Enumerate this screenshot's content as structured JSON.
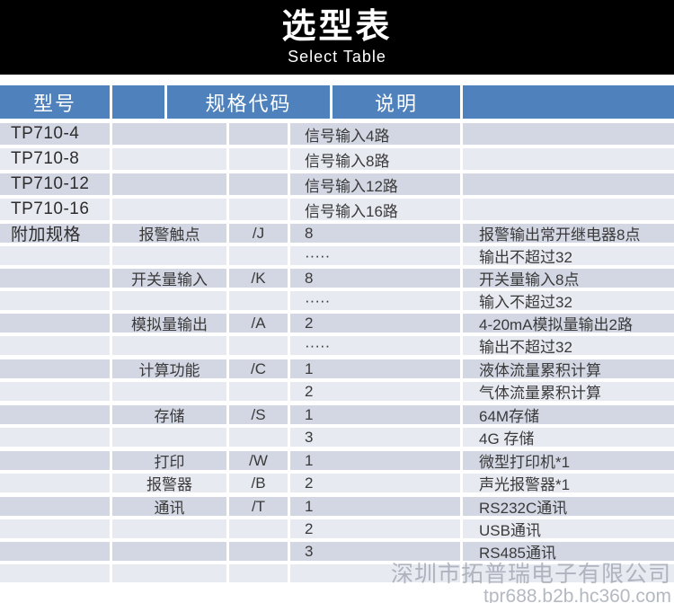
{
  "banner": {
    "title": "选型表",
    "subtitle": "Select Table"
  },
  "table": {
    "headers": [
      "型号",
      "",
      "规格代码",
      "说明",
      ""
    ],
    "rows": [
      {
        "model": "TP710-4",
        "option": "",
        "code": "",
        "value": "信号输入4路",
        "desc": ""
      },
      {
        "model": "TP710-8",
        "option": "",
        "code": "",
        "value": "信号输入8路",
        "desc": ""
      },
      {
        "model": "TP710-12",
        "option": "",
        "code": "",
        "value": "信号输入12路",
        "desc": ""
      },
      {
        "model": "TP710-16",
        "option": "",
        "code": "",
        "value": "信号输入16路",
        "desc": ""
      },
      {
        "model": "附加规格",
        "option": "报警触点",
        "code": "/J",
        "value": "8",
        "desc": "报警输出常开继电器8点"
      },
      {
        "model": "",
        "option": "",
        "code": "",
        "value": "·····",
        "desc": "输出不超过32"
      },
      {
        "model": "",
        "option": "开关量输入",
        "code": "/K",
        "value": "8",
        "desc": "开关量输入8点"
      },
      {
        "model": "",
        "option": "",
        "code": "",
        "value": "·····",
        "desc": "输入不超过32"
      },
      {
        "model": "",
        "option": "模拟量输出",
        "code": "/A",
        "value": "2",
        "desc": "4-20mA模拟量输出2路"
      },
      {
        "model": "",
        "option": "",
        "code": "",
        "value": "·····",
        "desc": "输出不超过32"
      },
      {
        "model": "",
        "option": "计算功能",
        "code": "/C",
        "value": "1",
        "desc": "液体流量累积计算",
        "group_gap": true
      },
      {
        "model": "",
        "option": "",
        "code": "",
        "value": "2",
        "desc": "气体流量累积计算"
      },
      {
        "model": "",
        "option": "存储",
        "code": "/S",
        "value": "1",
        "desc": "64M存储",
        "group_gap": true
      },
      {
        "model": "",
        "option": "",
        "code": "",
        "value": "3",
        "desc": "4G 存储"
      },
      {
        "model": "",
        "option": "打印",
        "code": "/W",
        "value": "1",
        "desc": "微型打印机*1",
        "group_gap": true
      },
      {
        "model": "",
        "option": "报警器",
        "code": "/B",
        "value": "2",
        "desc": "声光报警器*1"
      },
      {
        "model": "",
        "option": "通讯",
        "code": "/T",
        "value": "1",
        "desc": "RS232C通讯",
        "group_gap": true
      },
      {
        "model": "",
        "option": "",
        "code": "",
        "value": "2",
        "desc": "USB通讯"
      },
      {
        "model": "",
        "option": "",
        "code": "",
        "value": "3",
        "desc": "RS485通讯"
      },
      {
        "model": "",
        "option": "",
        "code": "",
        "value": "",
        "desc": "",
        "empty": true
      }
    ]
  },
  "watermark": {
    "company": "深圳市拓普瑞电子有限公司",
    "site": "tpr688.b2b.hc360.com"
  },
  "colors": {
    "banner_bg": "#000000",
    "header_blue": "#4f81bd",
    "band_dark": "#d3d7e3",
    "band_light": "#e8eaf2",
    "body_text": "#3a3a3a",
    "watermark_gray": "#8a919e"
  }
}
